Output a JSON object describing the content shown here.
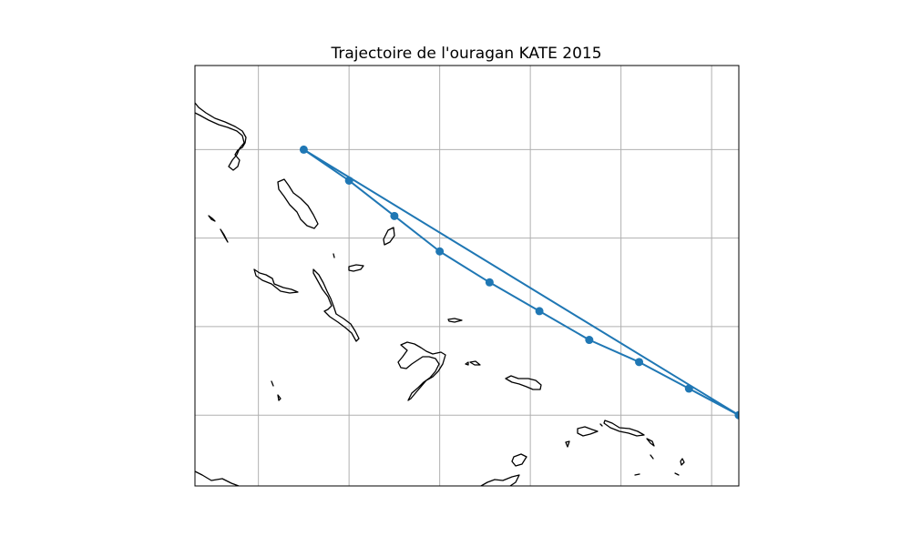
{
  "title": "Trajectoire de l'ouragan KATE 2015",
  "map": {
    "projection": "PlateCarree",
    "grid": true,
    "extent_lon": [
      -80,
      -68
    ],
    "extent_lat": [
      18,
      27.5
    ],
    "grid_lons": [
      -78.6,
      -76.6,
      -74.6,
      -72.6,
      -70.6,
      -68.6
    ],
    "grid_lats": [
      19.6,
      21.6,
      23.6,
      25.6
    ]
  },
  "colors": {
    "track": "#1f77b4",
    "coast": "#000000",
    "grid": "#b0b0b0"
  },
  "chart_data": {
    "type": "scatter",
    "title": "Trajectoire de l'ouragan KATE 2015",
    "xlabel": "",
    "ylabel": "",
    "series": [
      {
        "lons": [
          -68.0,
          -69.1,
          -70.2,
          -71.3,
          -72.4,
          -73.5,
          -74.6,
          -75.6,
          -76.6,
          -77.6,
          -68.0
        ],
        "lats": [
          19.6,
          20.2,
          20.8,
          21.3,
          21.95,
          22.6,
          23.3,
          24.1,
          24.9,
          25.6,
          19.6
        ]
      }
    ],
    "xlim": [
      -80,
      -68
    ],
    "ylim": [
      18,
      27.5
    ]
  }
}
